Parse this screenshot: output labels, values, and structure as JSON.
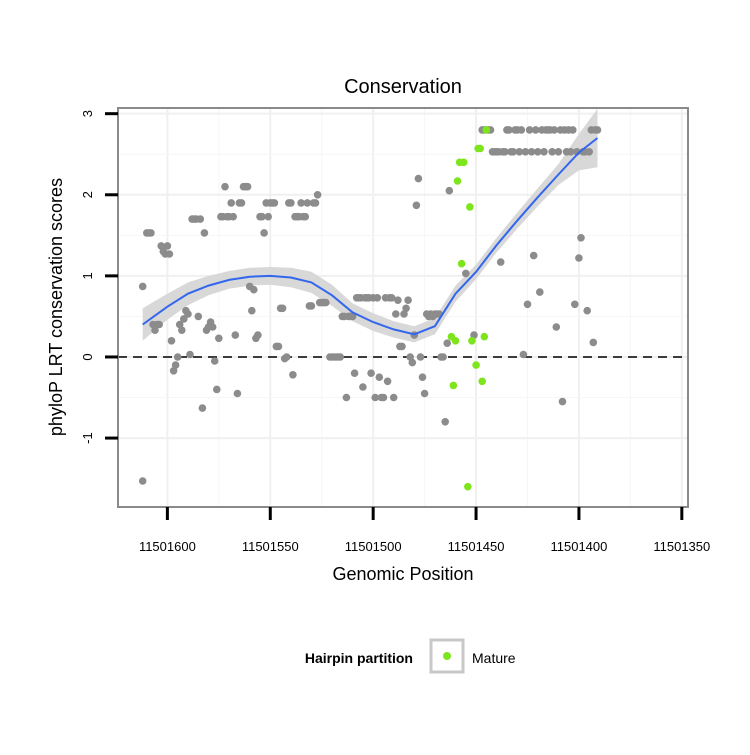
{
  "chart_data": {
    "type": "scatter",
    "title": "Conservation",
    "xlabel": "Genomic Position",
    "ylabel": "phyloP LRT conservation scores",
    "x_reversed": true,
    "xlim": [
      11501624,
      11501347
    ],
    "ylim": [
      -1.85,
      3.07
    ],
    "x_ticks": [
      11501600,
      11501550,
      11501500,
      11501450,
      11501400,
      11501350
    ],
    "x_tick_labels": [
      "11501600",
      "11501550",
      "11501500",
      "11501450",
      "11501400",
      "11501350"
    ],
    "y_ticks": [
      -1,
      0,
      1,
      2,
      3
    ],
    "y_tick_labels": [
      "-1",
      "0",
      "1",
      "2",
      "3"
    ],
    "reference_line": {
      "y": 0,
      "style": "dashed"
    },
    "grid": true,
    "legend": {
      "title": "Hairpin partition",
      "position": "bottom",
      "entries": [
        "Mature"
      ]
    },
    "colors": {
      "other": "#8c8c8c",
      "mature": "#7ee51c",
      "smooth": "#3366ee",
      "band": "#d6d6d6"
    },
    "series": [
      {
        "name": "",
        "color": "#8c8c8c",
        "points": [
          [
            11501612,
            -1.53
          ],
          [
            11501612,
            0.87
          ],
          [
            11501610,
            1.53
          ],
          [
            11501609,
            1.53
          ],
          [
            11501608,
            1.53
          ],
          [
            11501607,
            0.4
          ],
          [
            11501606,
            0.33
          ],
          [
            11501605,
            0.4
          ],
          [
            11501604,
            0.4
          ],
          [
            11501603,
            1.37
          ],
          [
            11501602,
            1.3
          ],
          [
            11501601,
            1.27
          ],
          [
            11501600,
            1.37
          ],
          [
            11501599,
            1.27
          ],
          [
            11501598,
            0.2
          ],
          [
            11501597,
            -0.17
          ],
          [
            11501596,
            -0.1
          ],
          [
            11501595,
            0.0
          ],
          [
            11501594,
            0.4
          ],
          [
            11501593,
            0.33
          ],
          [
            11501592,
            0.47
          ],
          [
            11501591,
            0.57
          ],
          [
            11501590,
            0.53
          ],
          [
            11501589,
            0.03
          ],
          [
            11501588,
            1.7
          ],
          [
            11501587,
            1.7
          ],
          [
            11501586,
            1.7
          ],
          [
            11501585,
            0.5
          ],
          [
            11501584,
            1.7
          ],
          [
            11501583,
            -0.63
          ],
          [
            11501582,
            1.53
          ],
          [
            11501581,
            0.33
          ],
          [
            11501580,
            0.37
          ],
          [
            11501579,
            0.43
          ],
          [
            11501578,
            0.37
          ],
          [
            11501577,
            -0.05
          ],
          [
            11501576,
            -0.4
          ],
          [
            11501575,
            0.23
          ],
          [
            11501574,
            1.73
          ],
          [
            11501573,
            1.73
          ],
          [
            11501572,
            2.1
          ],
          [
            11501571,
            1.73
          ],
          [
            11501570,
            1.73
          ],
          [
            11501569,
            1.9
          ],
          [
            11501568,
            1.73
          ],
          [
            11501567,
            0.27
          ],
          [
            11501566,
            -0.45
          ],
          [
            11501565,
            1.9
          ],
          [
            11501564,
            1.9
          ],
          [
            11501563,
            2.1
          ],
          [
            11501562,
            2.1
          ],
          [
            11501561,
            2.1
          ],
          [
            11501560,
            0.87
          ],
          [
            11501559,
            0.57
          ],
          [
            11501558,
            0.83
          ],
          [
            11501557,
            0.23
          ],
          [
            11501556,
            0.27
          ],
          [
            11501555,
            1.73
          ],
          [
            11501554,
            1.73
          ],
          [
            11501553,
            1.53
          ],
          [
            11501552,
            1.9
          ],
          [
            11501551,
            1.73
          ],
          [
            11501550,
            1.9
          ],
          [
            11501549,
            1.9
          ],
          [
            11501548,
            1.9
          ],
          [
            11501547,
            0.13
          ],
          [
            11501546,
            0.13
          ],
          [
            11501545,
            0.6
          ],
          [
            11501544,
            0.6
          ],
          [
            11501543,
            -0.02
          ],
          [
            11501542,
            0.0
          ],
          [
            11501541,
            1.9
          ],
          [
            11501540,
            1.9
          ],
          [
            11501539,
            -0.22
          ],
          [
            11501538,
            1.73
          ],
          [
            11501537,
            1.73
          ],
          [
            11501536,
            1.73
          ],
          [
            11501535,
            1.9
          ],
          [
            11501534,
            1.73
          ],
          [
            11501533,
            1.73
          ],
          [
            11501532,
            1.9
          ],
          [
            11501531,
            0.63
          ],
          [
            11501530,
            0.63
          ],
          [
            11501529,
            1.9
          ],
          [
            11501528,
            1.9
          ],
          [
            11501527,
            2.0
          ],
          [
            11501526,
            0.67
          ],
          [
            11501525,
            0.67
          ],
          [
            11501524,
            0.67
          ],
          [
            11501523,
            0.67
          ],
          [
            11501521,
            0.0
          ],
          [
            11501520,
            0.0
          ],
          [
            11501519,
            0.0
          ],
          [
            11501518,
            0.0
          ],
          [
            11501517,
            0.0
          ],
          [
            11501516,
            0.0
          ],
          [
            11501515,
            0.5
          ],
          [
            11501514,
            0.5
          ],
          [
            11501513,
            -0.5
          ],
          [
            11501512,
            0.5
          ],
          [
            11501511,
            0.5
          ],
          [
            11501510,
            0.5
          ],
          [
            11501509,
            -0.2
          ],
          [
            11501508,
            0.73
          ],
          [
            11501507,
            0.73
          ],
          [
            11501506,
            0.73
          ],
          [
            11501505,
            -0.37
          ],
          [
            11501504,
            0.73
          ],
          [
            11501503,
            0.73
          ],
          [
            11501502,
            0.73
          ],
          [
            11501501,
            -0.2
          ],
          [
            11501500,
            0.73
          ],
          [
            11501499,
            -0.5
          ],
          [
            11501498,
            0.73
          ],
          [
            11501497,
            -0.25
          ],
          [
            11501496,
            -0.5
          ],
          [
            11501495,
            -0.5
          ],
          [
            11501494,
            0.73
          ],
          [
            11501493,
            -0.3
          ],
          [
            11501492,
            0.73
          ],
          [
            11501491,
            0.73
          ],
          [
            11501490,
            -0.5
          ],
          [
            11501489,
            0.53
          ],
          [
            11501488,
            0.7
          ],
          [
            11501487,
            0.13
          ],
          [
            11501486,
            0.13
          ],
          [
            11501485,
            0.53
          ],
          [
            11501484,
            0.6
          ],
          [
            11501483,
            0.7
          ],
          [
            11501482,
            0.0
          ],
          [
            11501481,
            -0.07
          ],
          [
            11501480,
            0.27
          ],
          [
            11501479,
            1.87
          ],
          [
            11501478,
            2.2
          ],
          [
            11501477,
            0.0
          ],
          [
            11501476,
            -0.25
          ],
          [
            11501475,
            -0.45
          ],
          [
            11501474,
            0.53
          ],
          [
            11501473,
            0.5
          ],
          [
            11501472,
            0.53
          ],
          [
            11501471,
            0.5
          ],
          [
            11501470,
            0.53
          ],
          [
            11501469,
            0.53
          ],
          [
            11501468,
            0.53
          ],
          [
            11501467,
            0.0
          ],
          [
            11501466,
            0.0
          ],
          [
            11501465,
            -0.8
          ],
          [
            11501464,
            0.17
          ],
          [
            11501463,
            2.05
          ],
          [
            11501455,
            1.03
          ],
          [
            11501451,
            0.27
          ],
          [
            11501447,
            2.8
          ],
          [
            11501446,
            2.8
          ],
          [
            11501445,
            2.8
          ],
          [
            11501444,
            2.8
          ],
          [
            11501443,
            2.8
          ],
          [
            11501442,
            2.53
          ],
          [
            11501441,
            2.53
          ],
          [
            11501440,
            2.53
          ],
          [
            11501439,
            2.53
          ],
          [
            11501438,
            1.17
          ],
          [
            11501437,
            2.53
          ],
          [
            11501436,
            2.53
          ],
          [
            11501435,
            2.8
          ],
          [
            11501434,
            2.8
          ],
          [
            11501433,
            2.53
          ],
          [
            11501432,
            2.53
          ],
          [
            11501431,
            2.8
          ],
          [
            11501430,
            2.8
          ],
          [
            11501429,
            2.53
          ],
          [
            11501428,
            2.8
          ],
          [
            11501427,
            0.03
          ],
          [
            11501426,
            2.53
          ],
          [
            11501425,
            0.65
          ],
          [
            11501424,
            2.8
          ],
          [
            11501423,
            2.53
          ],
          [
            11501422,
            1.25
          ],
          [
            11501421,
            2.8
          ],
          [
            11501420,
            2.53
          ],
          [
            11501419,
            0.8
          ],
          [
            11501418,
            2.8
          ],
          [
            11501417,
            2.53
          ],
          [
            11501416,
            2.8
          ],
          [
            11501415,
            2.8
          ],
          [
            11501414,
            2.8
          ],
          [
            11501413,
            2.53
          ],
          [
            11501412,
            2.8
          ],
          [
            11501411,
            0.37
          ],
          [
            11501410,
            2.53
          ],
          [
            11501409,
            2.8
          ],
          [
            11501408,
            -0.55
          ],
          [
            11501407,
            2.8
          ],
          [
            11501406,
            2.53
          ],
          [
            11501405,
            2.8
          ],
          [
            11501404,
            2.53
          ],
          [
            11501403,
            2.8
          ],
          [
            11501402,
            0.65
          ],
          [
            11501401,
            2.53
          ],
          [
            11501400,
            1.22
          ],
          [
            11501399,
            1.47
          ],
          [
            11501398,
            2.53
          ],
          [
            11501397,
            2.53
          ],
          [
            11501396,
            0.57
          ],
          [
            11501395,
            2.53
          ],
          [
            11501394,
            2.8
          ],
          [
            11501393,
            0.18
          ],
          [
            11501392,
            2.8
          ],
          [
            11501391,
            2.8
          ]
        ]
      },
      {
        "name": "Mature",
        "color": "#7ee51c",
        "points": [
          [
            11501462,
            0.25
          ],
          [
            11501461,
            -0.35
          ],
          [
            11501460,
            0.2
          ],
          [
            11501459,
            2.17
          ],
          [
            11501458,
            2.4
          ],
          [
            11501457,
            1.15
          ],
          [
            11501456,
            2.4
          ],
          [
            11501454,
            -1.6
          ],
          [
            11501453,
            1.85
          ],
          [
            11501452,
            0.2
          ],
          [
            11501450,
            -0.1
          ],
          [
            11501449,
            2.57
          ],
          [
            11501448,
            2.57
          ],
          [
            11501447,
            -0.3
          ],
          [
            11501446,
            0.25
          ],
          [
            11501445,
            2.8
          ]
        ]
      }
    ],
    "smooth_line": {
      "x": [
        11501612,
        11501600,
        11501590,
        11501580,
        11501570,
        11501560,
        11501550,
        11501540,
        11501530,
        11501520,
        11501510,
        11501500,
        11501490,
        11501480,
        11501470,
        11501460,
        11501450,
        11501440,
        11501430,
        11501420,
        11501410,
        11501400,
        11501391
      ],
      "y": [
        0.4,
        0.62,
        0.78,
        0.88,
        0.95,
        0.99,
        1.0,
        0.98,
        0.92,
        0.76,
        0.55,
        0.43,
        0.34,
        0.28,
        0.38,
        0.78,
        1.05,
        1.38,
        1.68,
        1.97,
        2.25,
        2.52,
        2.7
      ],
      "ci_upper": [
        0.6,
        0.78,
        0.92,
        1.0,
        1.06,
        1.1,
        1.11,
        1.1,
        1.05,
        0.89,
        0.66,
        0.54,
        0.44,
        0.38,
        0.48,
        0.88,
        1.14,
        1.47,
        1.78,
        2.08,
        2.38,
        2.75,
        3.06
      ],
      "ci_lower": [
        0.2,
        0.46,
        0.64,
        0.76,
        0.84,
        0.88,
        0.89,
        0.86,
        0.79,
        0.63,
        0.44,
        0.32,
        0.24,
        0.18,
        0.28,
        0.68,
        0.96,
        1.29,
        1.58,
        1.86,
        2.12,
        2.3,
        2.34
      ]
    }
  }
}
